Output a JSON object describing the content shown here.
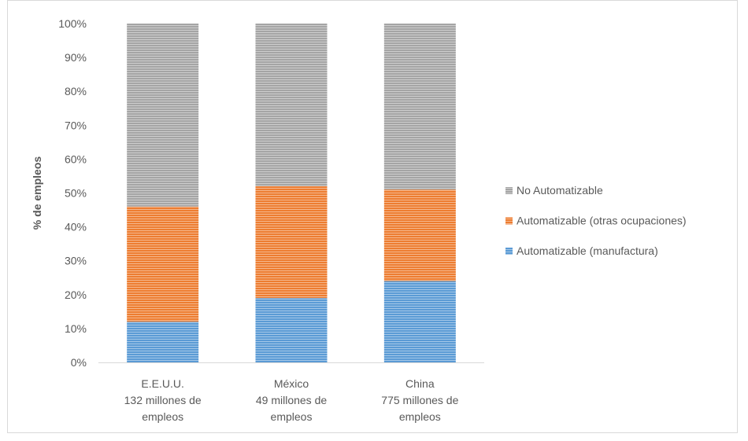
{
  "chart_data": {
    "type": "bar",
    "stacked": true,
    "percent": true,
    "ylabel": "% de empleos",
    "ylim": [
      0,
      100
    ],
    "yticks": [
      "0%",
      "10%",
      "20%",
      "30%",
      "40%",
      "50%",
      "60%",
      "70%",
      "80%",
      "90%",
      "100%"
    ],
    "categories": [
      [
        "E.E.U.U.",
        "132 millones de",
        "empleos"
      ],
      [
        "México",
        "49 millones de",
        "empleos"
      ],
      [
        "China",
        "775 millones de",
        "empleos"
      ]
    ],
    "series": [
      {
        "name": "Automatizable (manufactura)",
        "color": "#5b9bd5",
        "values": [
          12,
          19,
          24
        ]
      },
      {
        "name": "Automatizable (otras ocupaciones)",
        "color": "#ed7d31",
        "values": [
          34,
          33,
          27
        ]
      },
      {
        "name": "No Automatizable",
        "color": "#a5a5a5",
        "values": [
          54,
          48,
          49
        ]
      }
    ],
    "legend_position": "right",
    "grid": false
  }
}
